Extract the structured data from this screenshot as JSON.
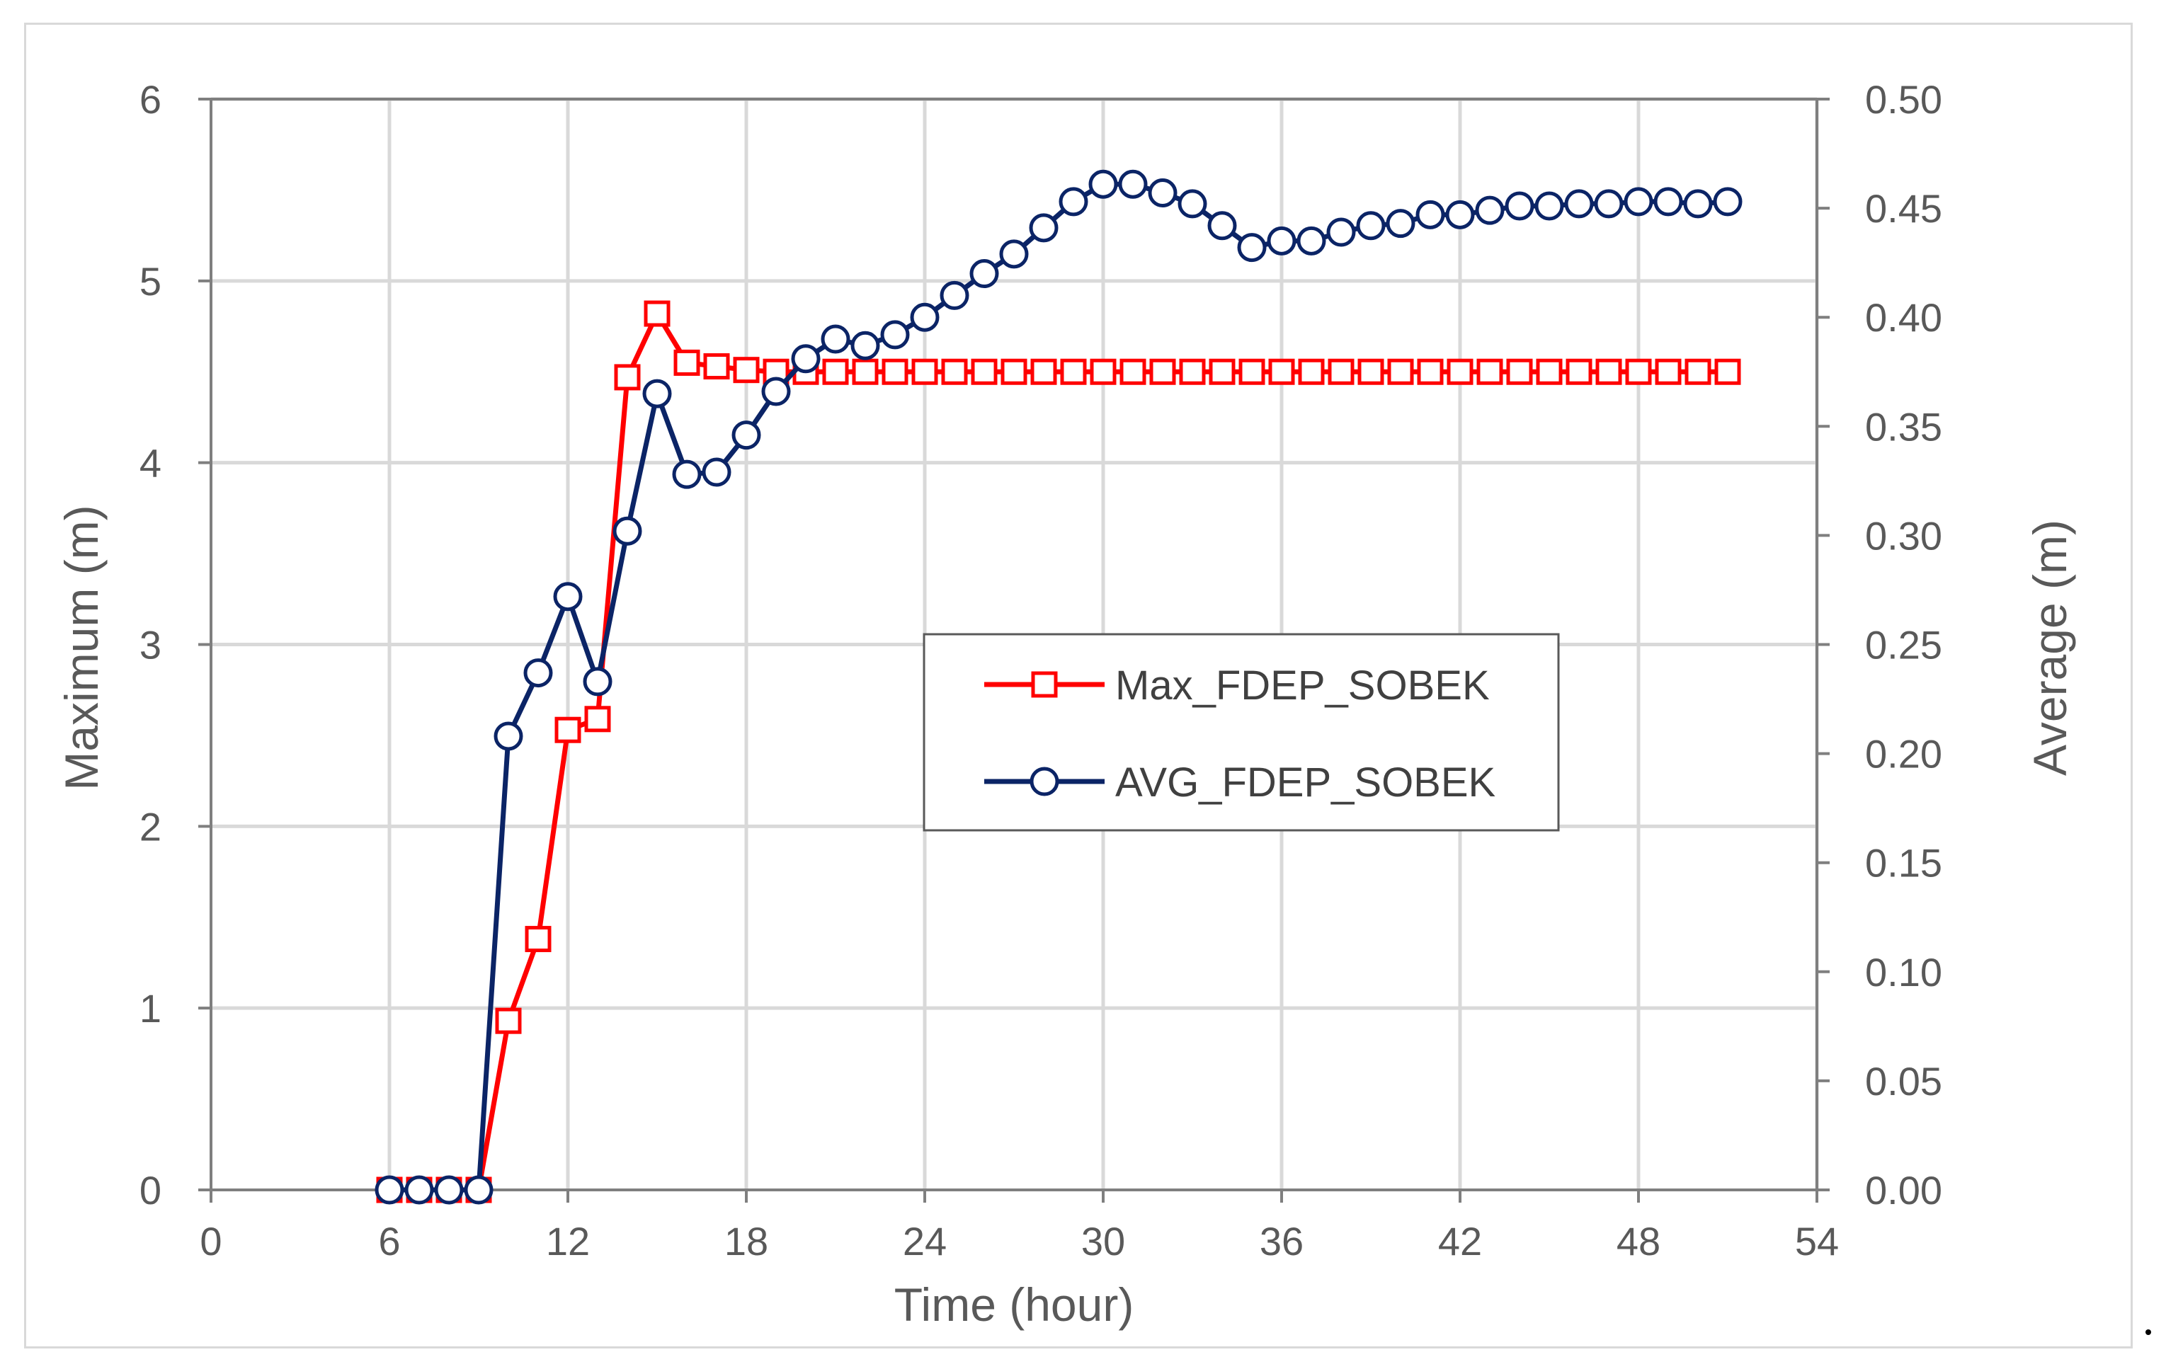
{
  "chart_data": {
    "type": "line",
    "title": "",
    "xlabel": "Time (hour)",
    "ylabel_left": "Maximum (m)",
    "ylabel_right": "Average (m)",
    "xlim": [
      0,
      54
    ],
    "ylim_left": [
      0,
      6
    ],
    "ylim_right": [
      0,
      0.5
    ],
    "x_ticks": [
      0,
      6,
      12,
      18,
      24,
      30,
      36,
      42,
      48,
      54
    ],
    "y_left_ticks": [
      0,
      1,
      2,
      3,
      4,
      5,
      6
    ],
    "y_right_ticks": [
      "0.00",
      "0.05",
      "0.10",
      "0.15",
      "0.20",
      "0.25",
      "0.30",
      "0.35",
      "0.40",
      "0.45",
      "0.50"
    ],
    "grid": true,
    "legend_position": "center-right",
    "series": [
      {
        "name": "Max_FDEP_SOBEK",
        "axis": "left",
        "color": "#ff0000",
        "marker": "square",
        "x": [
          6,
          7,
          8,
          9,
          10,
          11,
          12,
          13,
          14,
          15,
          16,
          17,
          18,
          19,
          20,
          21,
          22,
          23,
          24,
          25,
          26,
          27,
          28,
          29,
          30,
          31,
          32,
          33,
          34,
          35,
          36,
          37,
          38,
          39,
          40,
          41,
          42,
          43,
          44,
          45,
          46,
          47,
          48,
          49,
          50,
          51
        ],
        "values": [
          0,
          0,
          0,
          0,
          0.93,
          1.38,
          2.53,
          2.59,
          4.47,
          4.82,
          4.55,
          4.53,
          4.51,
          4.5,
          4.5,
          4.5,
          4.5,
          4.5,
          4.5,
          4.5,
          4.5,
          4.5,
          4.5,
          4.5,
          4.5,
          4.5,
          4.5,
          4.5,
          4.5,
          4.5,
          4.5,
          4.5,
          4.5,
          4.5,
          4.5,
          4.5,
          4.5,
          4.5,
          4.5,
          4.5,
          4.5,
          4.5,
          4.5,
          4.5,
          4.5,
          4.5
        ]
      },
      {
        "name": "AVG_FDEP_SOBEK",
        "axis": "right",
        "color": "#0b2466",
        "marker": "circle",
        "x": [
          6,
          7,
          8,
          9,
          10,
          11,
          12,
          13,
          14,
          15,
          16,
          17,
          18,
          19,
          20,
          21,
          22,
          23,
          24,
          25,
          26,
          27,
          28,
          29,
          30,
          31,
          32,
          33,
          34,
          35,
          36,
          37,
          38,
          39,
          40,
          41,
          42,
          43,
          44,
          45,
          46,
          47,
          48,
          49,
          50,
          51
        ],
        "values": [
          0,
          0,
          0,
          0,
          0.208,
          0.237,
          0.272,
          0.233,
          0.302,
          0.365,
          0.328,
          0.329,
          0.346,
          0.366,
          0.381,
          0.39,
          0.387,
          0.392,
          0.4,
          0.41,
          0.42,
          0.429,
          0.441,
          0.453,
          0.461,
          0.461,
          0.457,
          0.452,
          0.442,
          0.432,
          0.435,
          0.435,
          0.439,
          0.442,
          0.443,
          0.447,
          0.447,
          0.449,
          0.451,
          0.451,
          0.452,
          0.452,
          0.453,
          0.453,
          0.452,
          0.453
        ]
      }
    ]
  }
}
